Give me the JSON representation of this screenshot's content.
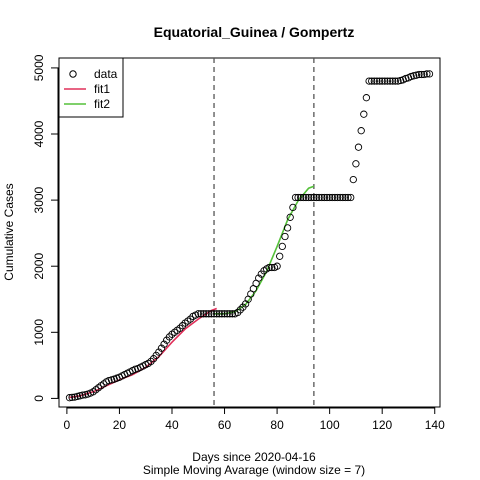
{
  "chart_data": {
    "type": "scatter",
    "title": "Equatorial_Guinea / Gompertz",
    "xlabel": "Days since 2020-04-16",
    "xlabel_sub": "Simple Moving Avarage (window size = 7)",
    "ylabel": "Cumulative Cases",
    "xlim": [
      -3,
      142
    ],
    "ylim": [
      -130,
      5150
    ],
    "x_ticks": [
      0,
      20,
      40,
      60,
      80,
      100,
      120,
      140
    ],
    "y_ticks": [
      0,
      1000,
      2000,
      3000,
      4000,
      5000
    ],
    "grid": false,
    "legend_position": "top-left",
    "vlines": [
      56,
      94
    ],
    "series": [
      {
        "name": "data",
        "kind": "points",
        "color": "#000000",
        "x": [
          1,
          2,
          3,
          4,
          5,
          6,
          7,
          8,
          9,
          10,
          11,
          12,
          13,
          14,
          15,
          16,
          17,
          18,
          19,
          20,
          21,
          22,
          23,
          24,
          25,
          26,
          27,
          28,
          29,
          30,
          31,
          32,
          33,
          34,
          35,
          36,
          37,
          38,
          39,
          40,
          41,
          42,
          43,
          44,
          45,
          46,
          47,
          48,
          49,
          50,
          51,
          52,
          53,
          54,
          55,
          56,
          57,
          58,
          59,
          60,
          61,
          62,
          63,
          64,
          65,
          66,
          67,
          68,
          69,
          70,
          71,
          72,
          73,
          74,
          75,
          76,
          77,
          78,
          79,
          80,
          81,
          82,
          83,
          84,
          85,
          86,
          87,
          88,
          89,
          90,
          91,
          92,
          93,
          94,
          95,
          96,
          97,
          98,
          99,
          100,
          101,
          102,
          103,
          104,
          105,
          106,
          107,
          108,
          109,
          110,
          111,
          112,
          113,
          114,
          115,
          116,
          117,
          118,
          119,
          120,
          121,
          122,
          123,
          124,
          125,
          126,
          127,
          128,
          129,
          130,
          131,
          132,
          133,
          134,
          135,
          136,
          137,
          138
        ],
        "y": [
          10,
          15,
          20,
          30,
          40,
          50,
          55,
          65,
          80,
          100,
          130,
          160,
          190,
          220,
          250,
          270,
          280,
          290,
          305,
          320,
          340,
          360,
          380,
          400,
          420,
          440,
          450,
          470,
          490,
          510,
          530,
          560,
          600,
          650,
          700,
          760,
          820,
          880,
          930,
          970,
          1000,
          1030,
          1060,
          1100,
          1140,
          1170,
          1200,
          1240,
          1260,
          1280,
          1280,
          1280,
          1280,
          1280,
          1280,
          1280,
          1280,
          1280,
          1280,
          1280,
          1280,
          1280,
          1280,
          1280,
          1300,
          1340,
          1380,
          1430,
          1500,
          1580,
          1660,
          1740,
          1820,
          1880,
          1930,
          1960,
          1980,
          1980,
          1980,
          2000,
          2150,
          2300,
          2450,
          2580,
          2740,
          2890,
          3040,
          3040,
          3040,
          3040,
          3040,
          3040,
          3040,
          3040,
          3040,
          3040,
          3040,
          3040,
          3040,
          3040,
          3040,
          3040,
          3040,
          3040,
          3040,
          3040,
          3040,
          3040,
          3310,
          3550,
          3800,
          4050,
          4300,
          4550,
          4800,
          4800,
          4800,
          4800,
          4800,
          4800,
          4800,
          4800,
          4800,
          4800,
          4800,
          4800,
          4810,
          4820,
          4840,
          4850,
          4870,
          4880,
          4890,
          4900,
          4900,
          4900,
          4910,
          4910
        ]
      },
      {
        "name": "fit1",
        "kind": "line",
        "color": "#e0305a",
        "x": [
          1,
          5,
          10,
          15,
          20,
          25,
          30,
          35,
          40,
          45,
          50,
          55,
          57
        ],
        "y": [
          15,
          40,
          100,
          190,
          280,
          360,
          470,
          630,
          850,
          1050,
          1200,
          1330,
          1360
        ]
      },
      {
        "name": "fit2",
        "kind": "line",
        "color": "#55c13a",
        "x": [
          56,
          60,
          64,
          68,
          72,
          76,
          80,
          84,
          88,
          92,
          94
        ],
        "y": [
          1280,
          1280,
          1310,
          1420,
          1630,
          1920,
          2300,
          2700,
          2990,
          3180,
          3210
        ]
      }
    ]
  }
}
